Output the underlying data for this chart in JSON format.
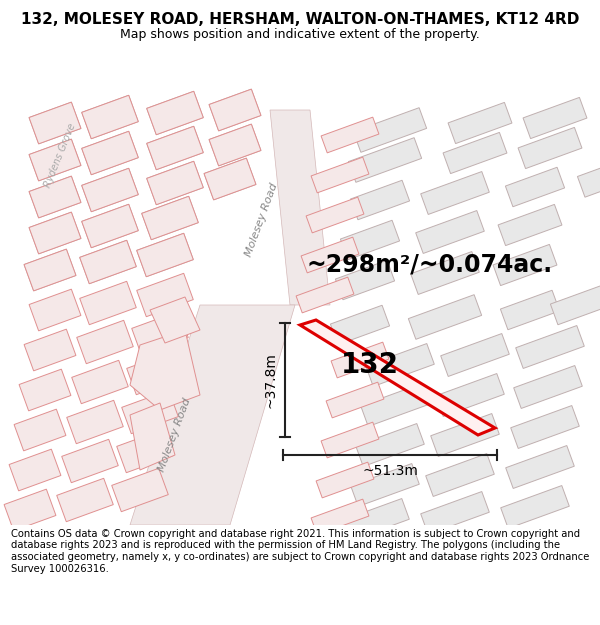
{
  "title_line1": "132, MOLESEY ROAD, HERSHAM, WALTON-ON-THAMES, KT12 4RD",
  "title_line2": "Map shows position and indicative extent of the property.",
  "area_label": "~298m²/~0.074ac.",
  "property_number": "132",
  "dim_height": "~37.8m",
  "dim_width": "~51.3m",
  "road_label_main": "Molesey Road",
  "road_label_secondary": "Molesey Road",
  "road_label_grove": "Rydens Grove",
  "footer_text": "Contains OS data © Crown copyright and database right 2021. This information is subject to Crown copyright and database rights 2023 and is reproduced with the permission of HM Land Registry. The polygons (including the associated geometry, namely x, y co-ordinates) are subject to Crown copyright and database rights 2023 Ordnance Survey 100026316.",
  "bg_color": "#ffffff",
  "map_bg": "#f9f6f6",
  "building_fill": "#e8e8e8",
  "building_edge": "#c0b0b0",
  "pink_building_fill": "#f5e8e8",
  "pink_building_edge": "#e09090",
  "road_fill": "#f0e8e8",
  "road_edge": "#d4b8b8",
  "property_fill": "none",
  "property_outline": "#dd0000",
  "dim_line_color": "#222222",
  "title_fontsize": 11,
  "subtitle_fontsize": 9,
  "area_fontsize": 17,
  "number_fontsize": 20,
  "dim_fontsize": 10,
  "footer_fontsize": 7.2,
  "road_label_fontsize": 8,
  "grove_label_fontsize": 7
}
